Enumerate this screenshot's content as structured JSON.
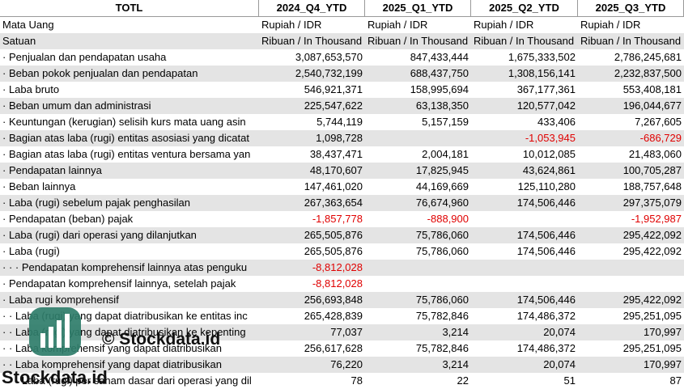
{
  "table": {
    "columns": [
      "TOTL",
      "2024_Q4_YTD",
      "2025_Q1_YTD",
      "2025_Q2_YTD",
      "2025_Q3_YTD"
    ],
    "rows": [
      [
        "Mata Uang",
        "Rupiah / IDR",
        "Rupiah / IDR",
        "Rupiah / IDR",
        "Rupiah / IDR"
      ],
      [
        "Satuan",
        "Ribuan / In Thousand",
        "Ribuan / In Thousand",
        "Ribuan / In Thousand",
        "Ribuan / In Thousand"
      ],
      [
        "· Penjualan dan pendapatan usaha",
        "3,087,653,570",
        "847,433,444",
        "1,675,333,502",
        "2,786,245,681"
      ],
      [
        "· Beban pokok penjualan dan pendapatan",
        "2,540,732,199",
        "688,437,750",
        "1,308,156,141",
        "2,232,837,500"
      ],
      [
        "· Laba bruto",
        "546,921,371",
        "158,995,694",
        "367,177,361",
        "553,408,181"
      ],
      [
        "· Beban umum dan administrasi",
        "225,547,622",
        "63,138,350",
        "120,577,042",
        "196,044,677"
      ],
      [
        "· Keuntungan (kerugian) selisih kurs mata uang asin",
        "5,744,119",
        "5,157,159",
        "433,406",
        "7,267,605"
      ],
      [
        "· Bagian atas laba (rugi) entitas asosiasi yang dicatat",
        "1,098,728",
        null,
        "-1,053,945",
        "-686,729"
      ],
      [
        "· Bagian atas laba (rugi) entitas ventura bersama yan",
        "38,437,471",
        "2,004,181",
        "10,012,085",
        "21,483,060"
      ],
      [
        "· Pendapatan lainnya",
        "48,170,607",
        "17,825,945",
        "43,624,861",
        "100,705,287"
      ],
      [
        "· Beban lainnya",
        "147,461,020",
        "44,169,669",
        "125,110,280",
        "188,757,648"
      ],
      [
        "· Laba (rugi) sebelum pajak penghasilan",
        "267,363,654",
        "76,674,960",
        "174,506,446",
        "297,375,079"
      ],
      [
        "· Pendapatan (beban) pajak",
        "-1,857,778",
        "-888,900",
        null,
        "-1,952,987"
      ],
      [
        "· Laba (rugi) dari operasi yang dilanjutkan",
        "265,505,876",
        "75,786,060",
        "174,506,446",
        "295,422,092"
      ],
      [
        "· Laba (rugi)",
        "265,505,876",
        "75,786,060",
        "174,506,446",
        "295,422,092"
      ],
      [
        "· · · Pendapatan komprehensif lainnya atas penguku",
        "-8,812,028",
        null,
        null,
        null
      ],
      [
        "· Pendapatan komprehensif lainnya, setelah pajak",
        "-8,812,028",
        null,
        null,
        null
      ],
      [
        "· Laba rugi komprehensif",
        "256,693,848",
        "75,786,060",
        "174,506,446",
        "295,422,092"
      ],
      [
        "· · Laba (rugi) yang dapat diatribusikan ke entitas inc",
        "265,428,839",
        "75,782,846",
        "174,486,372",
        "295,251,095"
      ],
      [
        "· · Laba (rugi) yang dapat diatribusikan ke kepenting",
        "77,037",
        "3,214",
        "20,074",
        "170,997"
      ],
      [
        "· · Laba komprehensif yang dapat diatribusikan",
        "256,617,628",
        "75,782,846",
        "174,486,372",
        "295,251,095"
      ],
      [
        "· · Laba komprehensif yang dapat diatribusikan",
        "76,220",
        "3,214",
        "20,074",
        "170,997"
      ],
      [
        "· · · Laba (rugi) per saham dasar dari operasi yang dil",
        "78",
        "22",
        "51",
        "87"
      ]
    ]
  },
  "watermark": {
    "text": "© Stockdata.id",
    "brand": "Stockdata.id"
  }
}
